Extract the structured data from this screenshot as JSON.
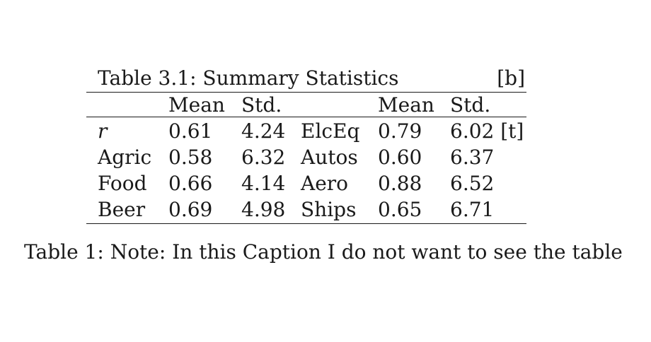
{
  "table": {
    "title": "Table 3.1: Summary Statistics",
    "float_spec": "[b]",
    "headers": [
      "",
      "Mean",
      "Std.",
      "",
      "Mean",
      "Std."
    ],
    "rows": [
      [
        "r",
        "0.61",
        "4.24",
        "ElcEq",
        "0.79",
        "6.02 [t]"
      ],
      [
        "Agric",
        "0.58",
        "6.32",
        "Autos",
        "0.60",
        "6.37"
      ],
      [
        "Food",
        "0.66",
        "4.14",
        "Aero",
        "0.88",
        "6.52"
      ],
      [
        "Beer",
        "0.69",
        "4.98",
        "Ships",
        "0.65",
        "6.71"
      ]
    ]
  },
  "caption": "Table 1: Note: In this Caption I do not want to see the table"
}
